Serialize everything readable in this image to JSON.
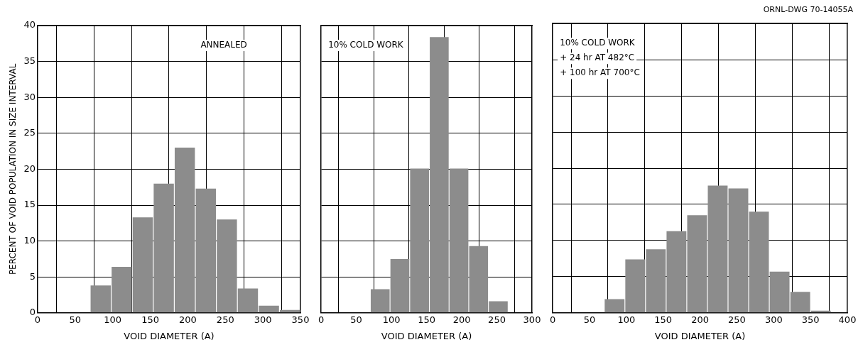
{
  "chart_data": [
    {
      "type": "histogram",
      "xlabel": "VOID DIAMETER (A)",
      "ylabel": "PERCENT OF VOID POPULATION IN SIZE INTERVAL",
      "annotations": [
        "ANNEALED"
      ],
      "bins": [
        70,
        98,
        126,
        154,
        182,
        210,
        238,
        266,
        294,
        322,
        350
      ],
      "values": [
        3.8,
        6.4,
        13.3,
        18.0,
        23.0,
        17.3,
        13.0,
        3.4,
        1.0,
        0.4
      ],
      "color": "#8c8c8c",
      "xlim": [
        0,
        350
      ],
      "xticks": [
        0,
        50,
        100,
        150,
        200,
        250,
        300,
        350
      ],
      "ylim": [
        0,
        40
      ],
      "yticks": [
        0,
        5,
        10,
        15,
        20,
        25,
        30,
        35,
        40
      ],
      "grid": true,
      "legend": false
    },
    {
      "type": "histogram",
      "xlabel": "VOID DIAMETER (A)",
      "annotations": [
        "10% COLD WORK"
      ],
      "bins": [
        70,
        98,
        126,
        154,
        182,
        210,
        238,
        266
      ],
      "values": [
        3.3,
        7.5,
        20.1,
        38.4,
        20.1,
        9.3,
        1.6
      ],
      "color": "#8c8c8c",
      "xlim": [
        0,
        300
      ],
      "xticks": [
        0,
        50,
        100,
        150,
        200,
        250,
        300
      ],
      "ylim": [
        0,
        40
      ],
      "yticks": [
        0,
        5,
        10,
        15,
        20,
        25,
        30,
        35,
        40
      ],
      "tick_labels": "x",
      "grid": true,
      "legend": false
    },
    {
      "type": "histogram",
      "subtitle": "ORNL-DWG 70-14055A",
      "xlabel": "VOID DIAMETER (A)",
      "annotations": [
        "10% COLD WORK",
        "+ 24 hr AT 482°C",
        "+ 100 hr AT 700°C"
      ],
      "bins": [
        70,
        98,
        126,
        154,
        182,
        210,
        238,
        266,
        294,
        322,
        350,
        378
      ],
      "values": [
        1.9,
        7.4,
        8.8,
        11.3,
        13.5,
        17.6,
        17.2,
        14.0,
        5.7,
        2.9,
        0.3
      ],
      "color": "#8c8c8c",
      "xlim": [
        0,
        400
      ],
      "xticks": [
        0,
        50,
        100,
        150,
        200,
        250,
        300,
        350,
        400
      ],
      "ylim": [
        0,
        40
      ],
      "yticks": [
        0,
        5,
        10,
        15,
        20,
        25,
        30,
        35,
        40
      ],
      "tick_labels": "x",
      "grid": true,
      "legend": false
    }
  ]
}
